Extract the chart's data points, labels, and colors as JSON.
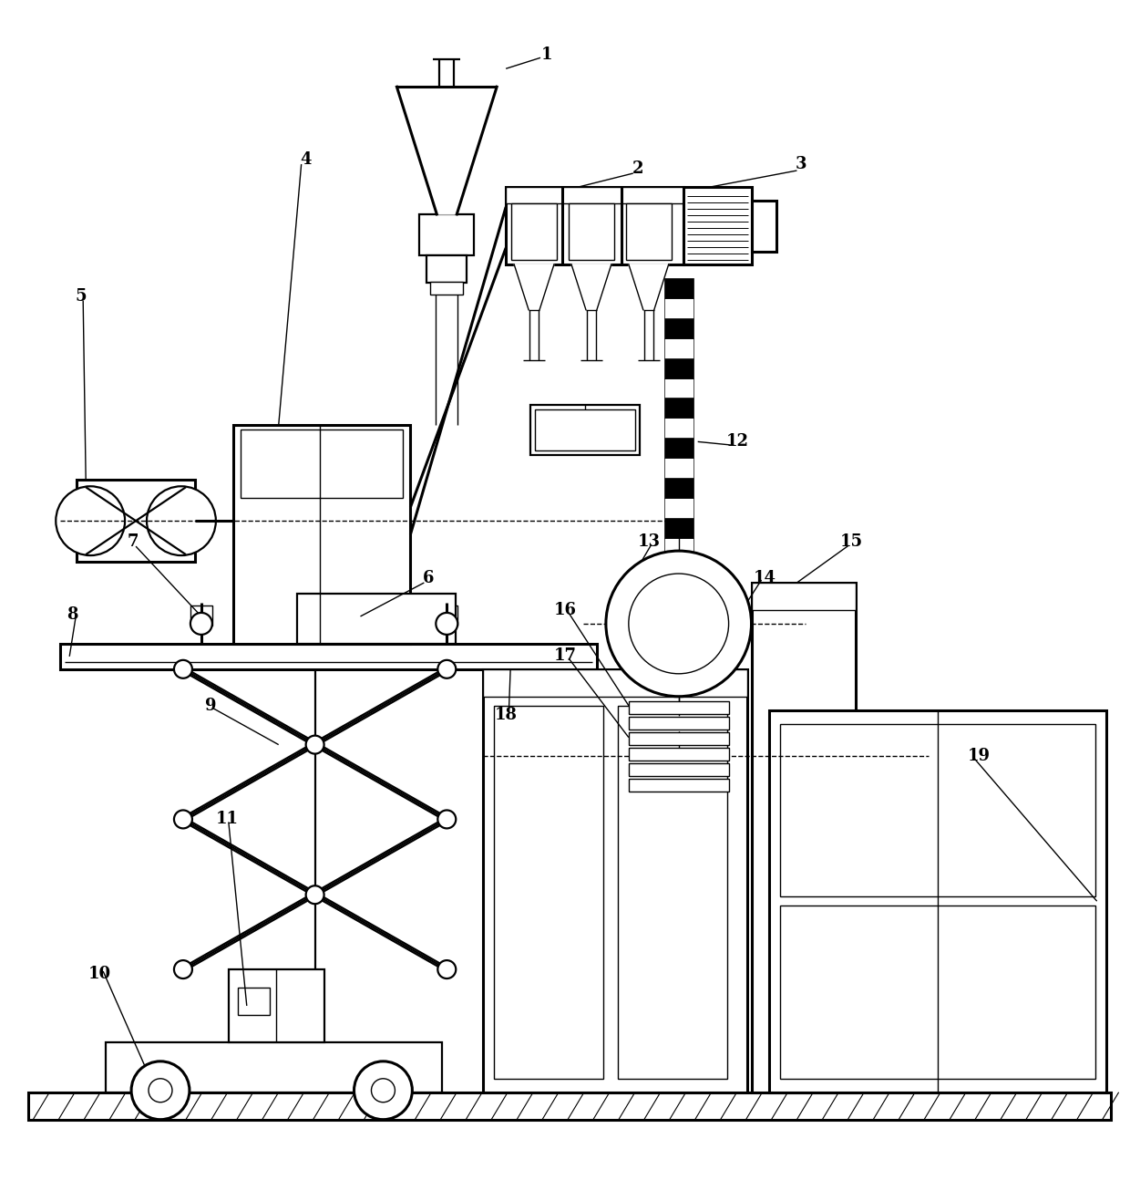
{
  "bg_color": "#ffffff",
  "fig_width": 12.4,
  "fig_height": 12.94,
  "dpi": 100
}
